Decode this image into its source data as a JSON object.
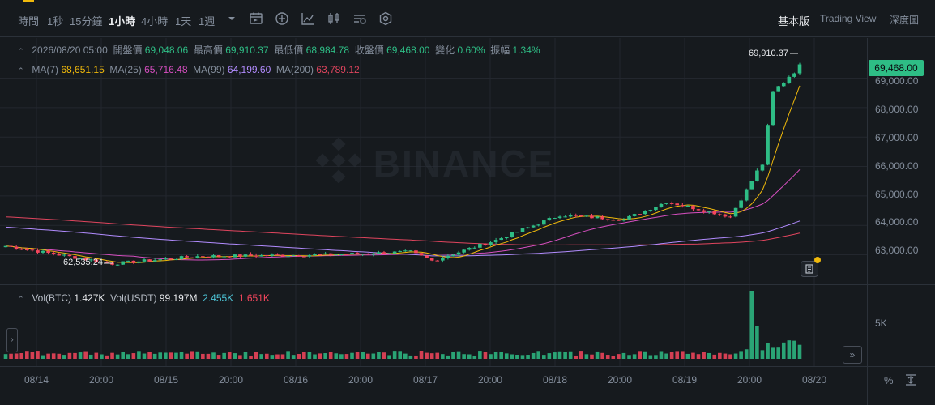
{
  "toolbar": {
    "timeframes": [
      {
        "label": "時間",
        "active": false
      },
      {
        "label": "1秒",
        "active": false
      },
      {
        "label": "15分鐘",
        "active": false
      },
      {
        "label": "1小時",
        "active": true
      },
      {
        "label": "4小時",
        "active": false
      },
      {
        "label": "1天",
        "active": false
      },
      {
        "label": "1週",
        "active": false
      }
    ],
    "tools": [
      "timeframe-dropdown-icon",
      "calendar-icon",
      "add-indicator-icon",
      "line-chart-icon",
      "candlestick-type-icon",
      "drawing-tools-icon",
      "settings-icon"
    ],
    "views": [
      {
        "label": "基本版",
        "active": true
      },
      {
        "label": "Trading View",
        "active": false
      },
      {
        "label": "深度圖",
        "active": false
      }
    ]
  },
  "ohlc": {
    "datetime": "2026/08/20 05:00",
    "open_label": "開盤價",
    "open": "69,048.06",
    "high_label": "最高價",
    "high": "69,910.37",
    "low_label": "最低價",
    "low": "68,984.78",
    "close_label": "收盤價",
    "close": "69,468.00",
    "change_label": "變化",
    "change": "0.60%",
    "amp_label": "振幅",
    "amp": "1.34%"
  },
  "ma": {
    "ma7_label": "MA(7)",
    "ma7": "68,651.15",
    "ma25_label": "MA(25)",
    "ma25": "65,716.48",
    "ma99_label": "MA(99)",
    "ma99": "64,199.60",
    "ma200_label": "MA(200)",
    "ma200": "63,789.12"
  },
  "volume": {
    "btc_label": "Vol(BTC)",
    "btc": "1.427K",
    "usdt_label": "Vol(USDT)",
    "usdt": "99.197M",
    "v1": "2.455K",
    "v2": "1.651K",
    "axis_label": "5K"
  },
  "watermark": "BINANCE",
  "price_axis": [
    "69,000.00",
    "68,000.00",
    "67,000.00",
    "66,000.00",
    "65,000.00",
    "64,000.00",
    "63,000.00"
  ],
  "current_price": "69,468.00",
  "high_marker": "69,910.37",
  "low_marker": "62,535.24",
  "time_axis": [
    "08/14",
    "20:00",
    "08/15",
    "20:00",
    "08/16",
    "20:00",
    "08/17",
    "20:00",
    "08/18",
    "20:00",
    "08/19",
    "20:00",
    "08/20"
  ],
  "pct_label": "%",
  "colors": {
    "up": "#2ebd85",
    "down": "#f6465d",
    "ma7": "#f0b90b",
    "ma25": "#d74fc1",
    "ma99": "#b28cff",
    "ma200": "#e0455e",
    "bg": "#161a1e",
    "grid": "#23272e"
  },
  "chart_data": {
    "type": "candlestick",
    "interval": "1h",
    "closes_anchor": [
      {
        "t": "08/14 00:00",
        "c": 63300
      },
      {
        "t": "08/14 20:00",
        "c": 62700
      },
      {
        "t": "08/15 12:00",
        "c": 62950
      },
      {
        "t": "08/16 12:00",
        "c": 63000
      },
      {
        "t": "08/17 04:00",
        "c": 63100
      },
      {
        "t": "08/17 08:00",
        "c": 62800
      },
      {
        "t": "08/17 20:00",
        "c": 63500
      },
      {
        "t": "08/18 08:00",
        "c": 64350
      },
      {
        "t": "08/18 20:00",
        "c": 64200
      },
      {
        "t": "08/19 04:00",
        "c": 64800
      },
      {
        "t": "08/19 16:00",
        "c": 64300
      },
      {
        "t": "08/19 22:00",
        "c": 66100
      },
      {
        "t": "08/20 00:00",
        "c": 68500
      },
      {
        "t": "08/20 05:00",
        "c": 69468
      }
    ],
    "ylim": [
      62300,
      69950
    ]
  }
}
